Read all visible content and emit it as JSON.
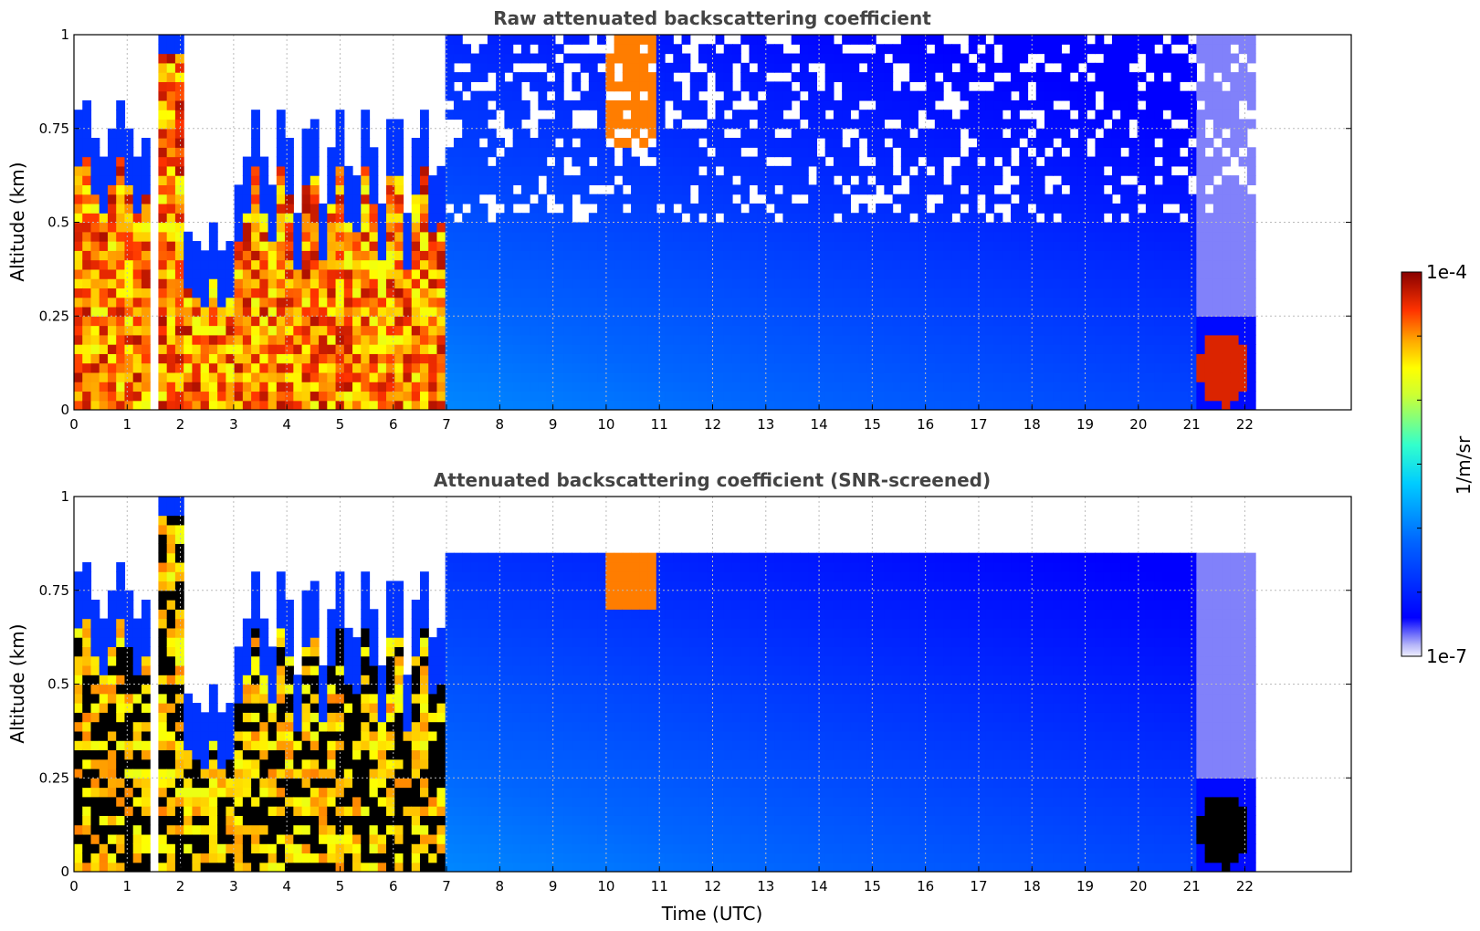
{
  "chart_data": [
    {
      "type": "heatmap",
      "title": "Raw attenuated backscattering coefficient",
      "xlabel": "",
      "ylabel": "Altitude (km)",
      "xlim": [
        0,
        24
      ],
      "ylim": [
        0,
        1
      ],
      "x_ticks": [
        "0",
        "1",
        "2",
        "3",
        "4",
        "5",
        "6",
        "7",
        "8",
        "9",
        "10",
        "11",
        "12",
        "13",
        "14",
        "15",
        "16",
        "17",
        "18",
        "19",
        "20",
        "21",
        "22"
      ],
      "y_ticks": [
        "0",
        "0.25",
        "0.5",
        "0.75",
        "1"
      ],
      "grid": true,
      "screened": false
    },
    {
      "type": "heatmap",
      "title": "Attenuated backscattering coefficient (SNR-screened)",
      "xlabel": "Time (UTC)",
      "ylabel": "Altitude (km)",
      "xlim": [
        0,
        24
      ],
      "ylim": [
        0,
        1
      ],
      "x_ticks": [
        "0",
        "1",
        "2",
        "3",
        "4",
        "5",
        "6",
        "7",
        "8",
        "9",
        "10",
        "11",
        "12",
        "13",
        "14",
        "15",
        "16",
        "17",
        "18",
        "19",
        "20",
        "21",
        "22"
      ],
      "y_ticks": [
        "0",
        "0.25",
        "0.5",
        "0.75",
        "1"
      ],
      "grid": true,
      "screened": true
    }
  ],
  "colorbar": {
    "label": "1/m/sr",
    "max_label": "1e-4",
    "min_label": "1e-7",
    "colormap": "jet"
  }
}
